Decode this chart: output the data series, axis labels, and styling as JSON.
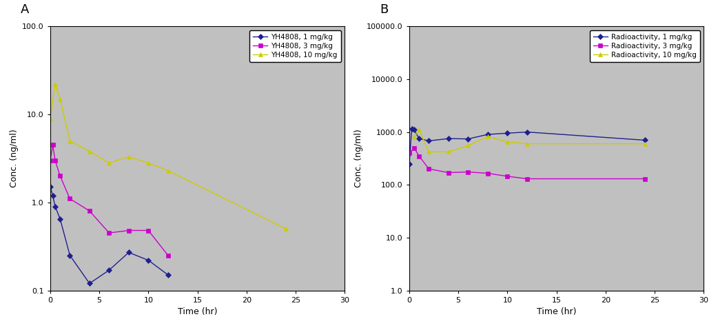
{
  "panel_A": {
    "title_label": "A",
    "xlabel": "Time (hr)",
    "ylabel": "Conc. (ng/ml)",
    "ylim": [
      0.1,
      100.0
    ],
    "xlim": [
      0,
      30
    ],
    "xticks": [
      0,
      5,
      10,
      15,
      20,
      25,
      30
    ],
    "yticks_log": [
      0.1,
      1.0,
      10.0,
      100.0
    ],
    "ytick_labels": [
      "0.1",
      "1.0",
      "10.0",
      "100.0"
    ],
    "series": [
      {
        "label": "YH4808, 1 mg/kg",
        "color": "#1F1F8F",
        "marker": "D",
        "markersize": 4,
        "x": [
          0,
          0.25,
          0.5,
          1,
          2,
          4,
          6,
          8,
          10,
          12
        ],
        "y": [
          1.5,
          1.2,
          0.9,
          0.65,
          0.25,
          0.12,
          0.17,
          0.27,
          0.22,
          0.15
        ]
      },
      {
        "label": "YH4808, 3 mg/kg",
        "color": "#CC00CC",
        "marker": "s",
        "markersize": 5,
        "x": [
          0,
          0.25,
          0.5,
          1,
          2,
          4,
          6,
          8,
          10,
          12
        ],
        "y": [
          3.0,
          4.5,
          3.0,
          2.0,
          1.1,
          0.8,
          0.45,
          0.48,
          0.48,
          0.25
        ]
      },
      {
        "label": "YH4808, 10 mg/kg",
        "color": "#CCCC00",
        "marker": "^",
        "markersize": 5,
        "x": [
          0,
          0.5,
          1,
          2,
          4,
          6,
          8,
          10,
          12,
          24
        ],
        "y": [
          9.0,
          22.0,
          15.0,
          5.0,
          3.8,
          2.8,
          3.3,
          2.8,
          2.3,
          0.5
        ]
      }
    ]
  },
  "panel_B": {
    "title_label": "B",
    "xlabel": "Time (hr)",
    "ylabel": "Conc. (ng/ml)",
    "ylim": [
      1.0,
      100000.0
    ],
    "xlim": [
      0,
      30
    ],
    "xticks": [
      0,
      5,
      10,
      15,
      20,
      25,
      30
    ],
    "yticks_log": [
      1.0,
      10.0,
      100.0,
      1000.0,
      10000.0,
      100000.0
    ],
    "ytick_labels": [
      "1.0",
      "10.0",
      "100.0",
      "1000.0",
      "10000.0",
      "100000.0"
    ],
    "series": [
      {
        "label": "Radioactivity, 1 mg/kg",
        "color": "#1F1F8F",
        "marker": "D",
        "markersize": 4,
        "x": [
          0,
          0.25,
          0.5,
          1,
          2,
          4,
          6,
          8,
          10,
          12,
          24
        ],
        "y": [
          250,
          1150,
          1100,
          750,
          680,
          750,
          740,
          900,
          950,
          1000,
          700
        ]
      },
      {
        "label": "Radioactivity, 3 mg/kg",
        "color": "#CC00CC",
        "marker": "s",
        "markersize": 5,
        "x": [
          0,
          0.5,
          1,
          2,
          4,
          6,
          8,
          10,
          12,
          24
        ],
        "y": [
          400,
          500,
          350,
          200,
          170,
          175,
          165,
          145,
          130,
          130
        ]
      },
      {
        "label": "Radioactivity, 10 mg/kg",
        "color": "#CCCC00",
        "marker": "^",
        "markersize": 5,
        "x": [
          0.5,
          1,
          2,
          4,
          6,
          8,
          10,
          12,
          24
        ],
        "y": [
          800,
          1100,
          420,
          420,
          550,
          820,
          650,
          600,
          600
        ]
      }
    ]
  },
  "bg_color": "#C0C0C0",
  "fig_bg_color": "#FFFFFF",
  "legend_fontsize": 7.5,
  "axis_label_fontsize": 9,
  "tick_fontsize": 8,
  "panel_label_fontsize": 13
}
